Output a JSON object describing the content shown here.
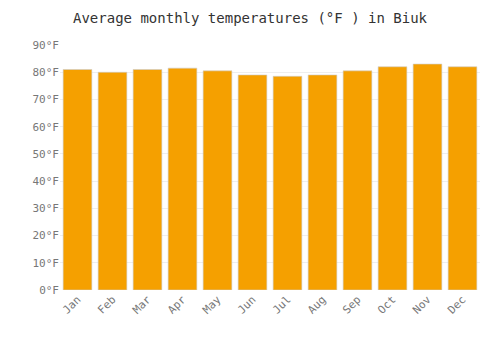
{
  "chart_data": {
    "type": "bar",
    "title": "Average monthly temperatures (°F ) in Biuk",
    "categories": [
      "Jan",
      "Feb",
      "Mar",
      "Apr",
      "May",
      "Jun",
      "Jul",
      "Aug",
      "Sep",
      "Oct",
      "Nov",
      "Dec"
    ],
    "values": [
      81,
      80,
      81,
      81.5,
      80.5,
      79,
      78.5,
      79,
      80.5,
      82,
      83,
      82
    ],
    "color": "#F5A000",
    "ylim": [
      0,
      90
    ],
    "yticks": [
      {
        "value": 0,
        "label": "0°F"
      },
      {
        "value": 10,
        "label": "10°F"
      },
      {
        "value": 20,
        "label": "20°F"
      },
      {
        "value": 30,
        "label": "30°F"
      },
      {
        "value": 40,
        "label": "40°F"
      },
      {
        "value": 50,
        "label": "50°F"
      },
      {
        "value": 60,
        "label": "60°F"
      },
      {
        "value": 70,
        "label": "70°F"
      },
      {
        "value": 80,
        "label": "80°F"
      },
      {
        "value": 90,
        "label": "90°F"
      }
    ],
    "grid": true
  }
}
